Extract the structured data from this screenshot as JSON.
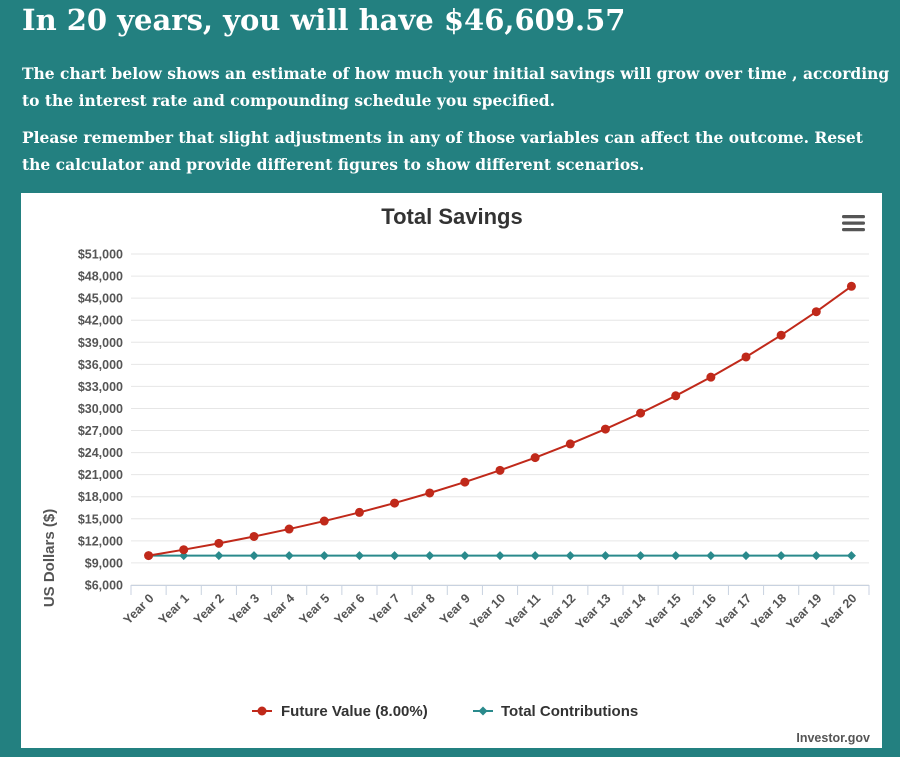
{
  "page": {
    "headline": "In 20 years, you will have $46,609.57",
    "paragraph_1": "The chart below shows an estimate of how much your initial savings will grow over time , according to the interest rate and compounding schedule you specified.",
    "paragraph_2": "Please remember that slight adjustments in any of those variables can affect the outcome. Reset the calculator and provide different figures to show different scenarios.",
    "credit": "Investor.gov",
    "menu_icon": "hamburger-menu-icon"
  },
  "colors": {
    "background": "#238080",
    "future_value": "#c0291a",
    "total_contributions": "#2a8a8c"
  },
  "chart_data": {
    "type": "line",
    "title": "Total Savings",
    "ylabel": "US Dollars ($)",
    "xlabel": "",
    "ylim": [
      6000,
      51000
    ],
    "y_ticks": [
      6000,
      9000,
      12000,
      15000,
      18000,
      21000,
      24000,
      27000,
      30000,
      33000,
      36000,
      39000,
      42000,
      45000,
      48000,
      51000
    ],
    "y_tick_labels": [
      "$6,000",
      "$9,000",
      "$12,000",
      "$15,000",
      "$18,000",
      "$21,000",
      "$24,000",
      "$27,000",
      "$30,000",
      "$33,000",
      "$36,000",
      "$39,000",
      "$42,000",
      "$45,000",
      "$48,000",
      "$51,000"
    ],
    "categories": [
      "Year 0",
      "Year 1",
      "Year 2",
      "Year 3",
      "Year 4",
      "Year 5",
      "Year 6",
      "Year 7",
      "Year 8",
      "Year 9",
      "Year 10",
      "Year 11",
      "Year 12",
      "Year 13",
      "Year 14",
      "Year 15",
      "Year 16",
      "Year 17",
      "Year 18",
      "Year 19",
      "Year 20"
    ],
    "series": [
      {
        "name": "Future Value (8.00%)",
        "marker": "circle",
        "values": [
          10000,
          10800,
          11664,
          12597.12,
          13604.89,
          14693.28,
          15868.74,
          17138.24,
          18509.3,
          19990.05,
          21589.25,
          23316.39,
          25181.7,
          27196.24,
          29371.94,
          31721.69,
          34259.43,
          37000.18,
          39960.2,
          43157.01,
          46609.57
        ]
      },
      {
        "name": "Total Contributions",
        "marker": "diamond",
        "values": [
          10000,
          10000,
          10000,
          10000,
          10000,
          10000,
          10000,
          10000,
          10000,
          10000,
          10000,
          10000,
          10000,
          10000,
          10000,
          10000,
          10000,
          10000,
          10000,
          10000,
          10000
        ]
      }
    ],
    "grid": true,
    "legend_position": "bottom"
  }
}
